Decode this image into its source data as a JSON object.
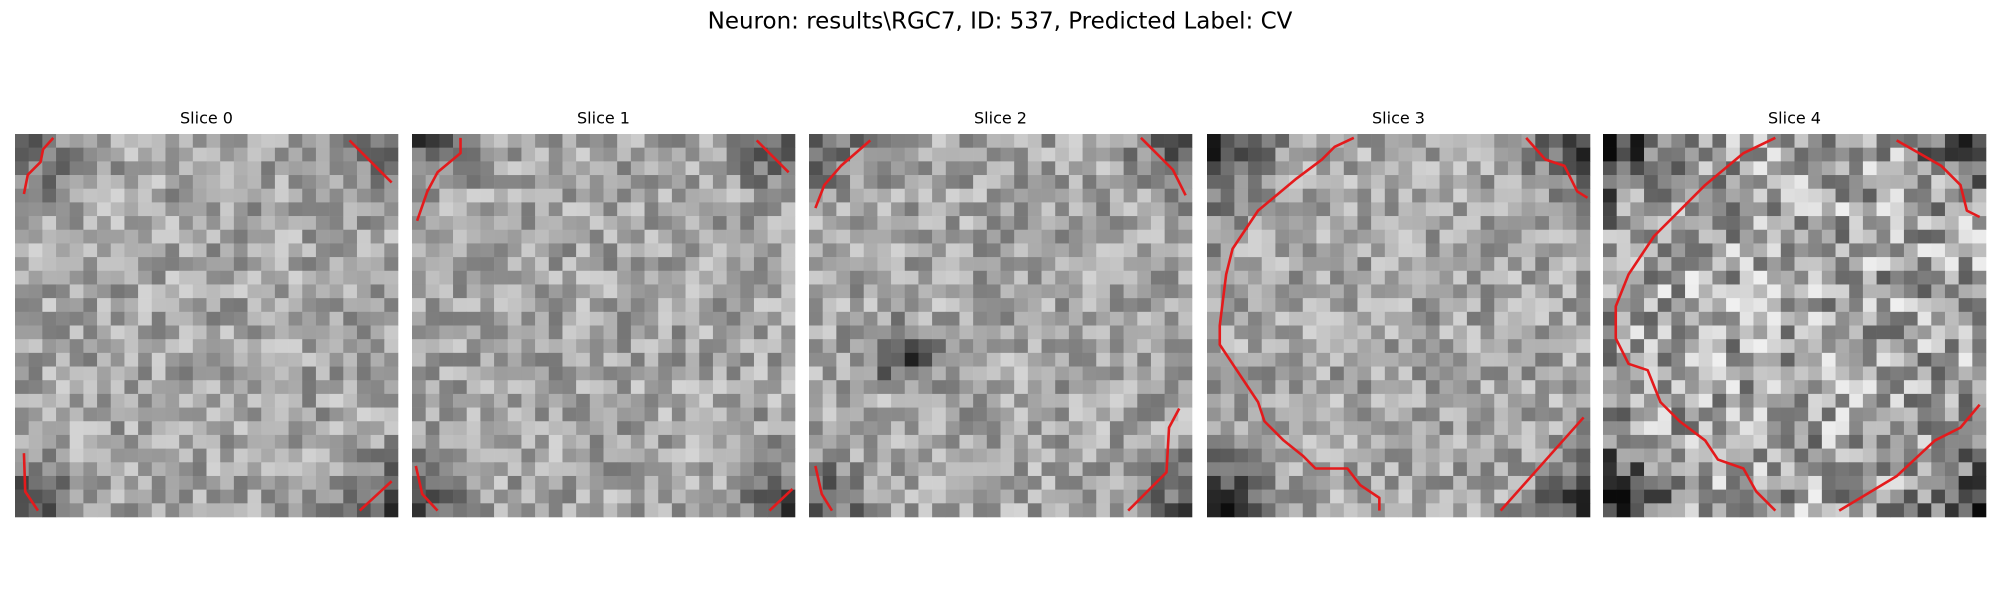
{
  "header": {
    "title": "Neuron: results\\RGC7, ID: 537, Predicted Label: CV"
  },
  "panels": [
    {
      "title": "Slice 0"
    },
    {
      "title": "Slice 1"
    },
    {
      "title": "Slice 2"
    },
    {
      "title": "Slice 3"
    },
    {
      "title": "Slice 4"
    }
  ]
}
